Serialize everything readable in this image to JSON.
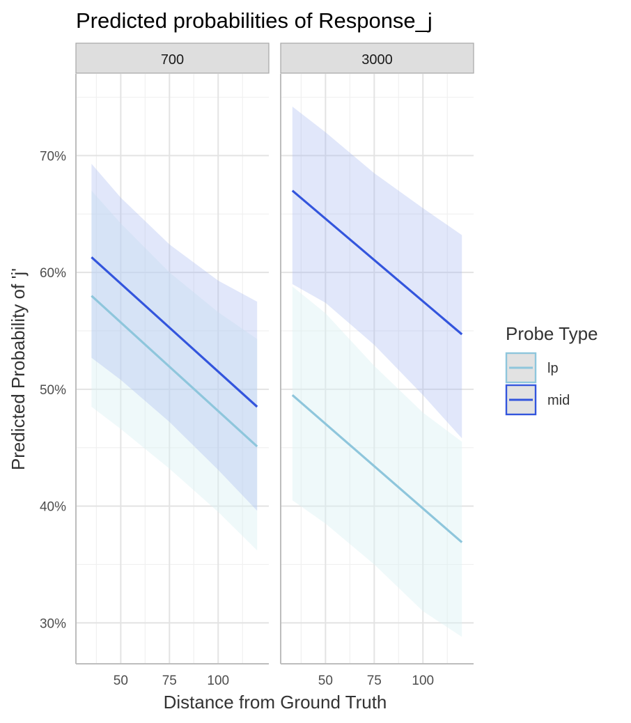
{
  "chart_data": {
    "type": "line",
    "title": "Predicted probabilities of Response_j",
    "xlabel": "Distance from Ground Truth",
    "ylabel": "Predicted Probability of 'j'",
    "x_range": [
      27,
      126
    ],
    "y_range": [
      0.265,
      0.77
    ],
    "x_ticks": [
      50,
      75,
      100
    ],
    "x_tick_labels": [
      "50",
      "75",
      "100"
    ],
    "y_ticks": [
      0.3,
      0.4,
      0.5,
      0.6,
      0.7
    ],
    "y_tick_labels": [
      "30%",
      "40%",
      "50%",
      "60%",
      "70%"
    ],
    "grid": true,
    "legend": {
      "title": "Probe Type",
      "placement": "right",
      "entries": [
        {
          "label": "lp",
          "color": "#8ec6dc"
        },
        {
          "label": "mid",
          "color": "#3355dd"
        }
      ]
    },
    "facets": [
      {
        "label": "700",
        "series": [
          {
            "name": "lp",
            "color": "#8ec6dc",
            "ribbon_color": "#d9f0f3",
            "x": [
              35,
              120
            ],
            "y": [
              0.58,
              0.451
            ],
            "ribbon_x": [
              35,
              50,
              75,
              100,
              120
            ],
            "ribbon_lower": [
              0.485,
              0.466,
              0.432,
              0.395,
              0.362
            ],
            "ribbon_upper": [
              0.67,
              0.642,
              0.6,
              0.566,
              0.543
            ]
          },
          {
            "name": "mid",
            "color": "#3355dd",
            "ribbon_color": "#a3b4f0",
            "x": [
              35,
              120
            ],
            "y": [
              0.613,
              0.485
            ],
            "ribbon_x": [
              35,
              50,
              75,
              100,
              120
            ],
            "ribbon_lower": [
              0.527,
              0.508,
              0.472,
              0.431,
              0.396
            ],
            "ribbon_upper": [
              0.693,
              0.664,
              0.624,
              0.593,
              0.575
            ]
          }
        ]
      },
      {
        "label": "3000",
        "series": [
          {
            "name": "lp",
            "color": "#8ec6dc",
            "ribbon_color": "#d9f0f3",
            "x": [
              33,
              120
            ],
            "y": [
              0.495,
              0.369
            ],
            "ribbon_x": [
              33,
              50,
              75,
              100,
              120
            ],
            "ribbon_lower": [
              0.405,
              0.385,
              0.35,
              0.31,
              0.288
            ],
            "ribbon_upper": [
              0.588,
              0.565,
              0.52,
              0.48,
              0.455
            ]
          },
          {
            "name": "mid",
            "color": "#3355dd",
            "ribbon_color": "#a3b4f0",
            "x": [
              33,
              120
            ],
            "y": [
              0.67,
              0.547
            ],
            "ribbon_x": [
              33,
              50,
              75,
              100,
              120
            ],
            "ribbon_lower": [
              0.59,
              0.574,
              0.538,
              0.495,
              0.458
            ],
            "ribbon_upper": [
              0.742,
              0.72,
              0.685,
              0.655,
              0.632
            ]
          }
        ]
      }
    ]
  }
}
